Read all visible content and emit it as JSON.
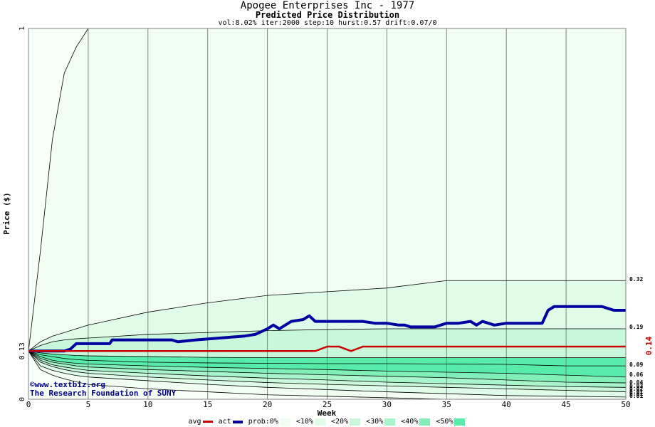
{
  "header": {
    "title": "Apogee Enterprises Inc - 1977",
    "subtitle": "Predicted Price Distribution",
    "params": "vol:8.02% iter:2000 step:10 hurst:0.57 drift:0.07/0"
  },
  "credits": {
    "copyright": "©www.textbiz.org",
    "org": "The Research Foundation of SUNY"
  },
  "legend": {
    "avg": "avg",
    "act": "act",
    "prob": "prob:0%",
    "bands": [
      "<10%",
      "<20%",
      "<30%",
      "<40%",
      "<50%"
    ]
  },
  "colors": {
    "avg": "#cc0000",
    "act": "#0000a0",
    "bands": [
      "#f0fdf0",
      "#e0fbe8",
      "#c8f7dc",
      "#a8f5cc",
      "#80f0b8",
      "#58ecaa"
    ]
  },
  "chart_data": {
    "type": "area",
    "xlabel": "Week",
    "ylabel": "Price ($)",
    "xlim": [
      0,
      50
    ],
    "ylim": [
      0,
      1
    ],
    "x_ticks": [
      0,
      5,
      10,
      15,
      20,
      25,
      30,
      35,
      40,
      45,
      50
    ],
    "y_ticks": [
      {
        "value": 0,
        "label": "0"
      },
      {
        "value": 0.13,
        "label": "0.13"
      },
      {
        "value": 1,
        "label": "1"
      }
    ],
    "right_labels": [
      "0.32",
      "0.19",
      "0.14",
      "0.09",
      "0.06",
      "0.04",
      "0.03",
      "0.02",
      "0.01",
      "0.01",
      "0.01"
    ],
    "avg_label": "0.14",
    "x": [
      0,
      1,
      2,
      3,
      4,
      5,
      10,
      15,
      20,
      25,
      30,
      35,
      40,
      45,
      50
    ],
    "band_lines": [
      {
        "name": "100%",
        "values": [
          0.13,
          0.4,
          0.7,
          0.88,
          0.95,
          1.0,
          1.0,
          1.0,
          1.0,
          1.0,
          1.0,
          1.0,
          1.0,
          1.0,
          1.0
        ]
      },
      {
        "name": "90%",
        "values": [
          0.13,
          0.155,
          0.17,
          0.18,
          0.19,
          0.2,
          0.235,
          0.26,
          0.28,
          0.29,
          0.3,
          0.32,
          0.32,
          0.32,
          0.32
        ]
      },
      {
        "name": "80%",
        "values": [
          0.13,
          0.145,
          0.155,
          0.16,
          0.163,
          0.165,
          0.175,
          0.18,
          0.185,
          0.188,
          0.19,
          0.19,
          0.19,
          0.19,
          0.19
        ]
      },
      {
        "name": "70%",
        "values": [
          0.13,
          0.125,
          0.122,
          0.12,
          0.118,
          0.117,
          0.115,
          0.113,
          0.112,
          0.112,
          0.112,
          0.112,
          0.112,
          0.112,
          0.112
        ]
      },
      {
        "name": "60%",
        "values": [
          0.13,
          0.12,
          0.115,
          0.11,
          0.107,
          0.105,
          0.1,
          0.098,
          0.097,
          0.096,
          0.096,
          0.095,
          0.094,
          0.09,
          0.09
        ]
      },
      {
        "name": "50%",
        "values": [
          0.13,
          0.115,
          0.105,
          0.1,
          0.097,
          0.095,
          0.09,
          0.086,
          0.083,
          0.08,
          0.076,
          0.073,
          0.07,
          0.065,
          0.06
        ]
      },
      {
        "name": "40%",
        "values": [
          0.13,
          0.11,
          0.1,
          0.095,
          0.09,
          0.087,
          0.08,
          0.075,
          0.07,
          0.066,
          0.062,
          0.058,
          0.052,
          0.046,
          0.044
        ]
      },
      {
        "name": "30%",
        "values": [
          0.13,
          0.105,
          0.093,
          0.087,
          0.082,
          0.078,
          0.07,
          0.063,
          0.057,
          0.052,
          0.046,
          0.042,
          0.038,
          0.034,
          0.032
        ]
      },
      {
        "name": "20%",
        "values": [
          0.13,
          0.1,
          0.088,
          0.08,
          0.074,
          0.07,
          0.06,
          0.052,
          0.045,
          0.04,
          0.036,
          0.032,
          0.028,
          0.024,
          0.02
        ]
      },
      {
        "name": "10%",
        "values": [
          0.13,
          0.09,
          0.078,
          0.07,
          0.064,
          0.06,
          0.05,
          0.04,
          0.032,
          0.026,
          0.02,
          0.015,
          0.01,
          0.008,
          0.006
        ]
      },
      {
        "name": "0%",
        "values": [
          0.13,
          0.08,
          0.065,
          0.055,
          0.047,
          0.04,
          0.028,
          0.02,
          0.012,
          0.008,
          0.004,
          0.0,
          0.0,
          0.0,
          0.0
        ]
      }
    ],
    "series": [
      {
        "name": "act",
        "x": [
          0,
          3,
          3.5,
          4,
          6.8,
          7,
          12,
          12.5,
          14,
          18,
          19,
          20,
          20.5,
          21,
          21.5,
          22,
          23,
          23.5,
          24,
          24.5,
          28,
          29,
          30,
          31,
          31.5,
          32,
          34,
          35,
          36,
          37,
          37.5,
          38,
          39,
          40,
          41,
          43,
          43.5,
          44,
          48,
          49,
          50
        ],
        "values": [
          0.13,
          0.13,
          0.135,
          0.15,
          0.15,
          0.16,
          0.16,
          0.155,
          0.16,
          0.17,
          0.175,
          0.19,
          0.2,
          0.19,
          0.2,
          0.21,
          0.215,
          0.225,
          0.21,
          0.21,
          0.21,
          0.205,
          0.205,
          0.2,
          0.2,
          0.195,
          0.195,
          0.205,
          0.205,
          0.21,
          0.2,
          0.21,
          0.2,
          0.205,
          0.205,
          0.205,
          0.24,
          0.25,
          0.25,
          0.24,
          0.24
        ]
      },
      {
        "name": "avg",
        "x": [
          0,
          1,
          24,
          25,
          26,
          27,
          28,
          30,
          35,
          40,
          45,
          50
        ],
        "values": [
          0.13,
          0.13,
          0.13,
          0.142,
          0.142,
          0.13,
          0.142,
          0.142,
          0.142,
          0.142,
          0.142,
          0.142
        ]
      }
    ]
  }
}
